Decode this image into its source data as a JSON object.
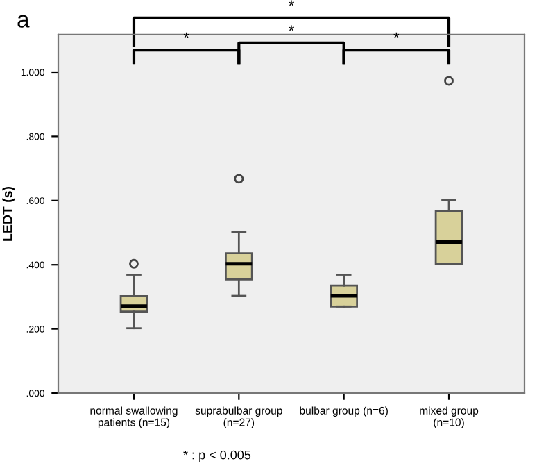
{
  "chart_data": {
    "type": "box",
    "title": "a",
    "ylabel": "LEDT (s)",
    "categories": [
      "normal swallowing\npatients (n=15)",
      "suprabulbar group\n(n=27)",
      "bulbar group (n=6)",
      "mixed group\n(n=10)"
    ],
    "boxes": [
      {
        "low": 0.202,
        "q1": 0.254,
        "median": 0.271,
        "q3": 0.302,
        "high": 0.369,
        "outliers": [
          0.403
        ]
      },
      {
        "low": 0.303,
        "q1": 0.354,
        "median": 0.403,
        "q3": 0.436,
        "high": 0.502,
        "outliers": [
          0.668
        ]
      },
      {
        "low": 0.27,
        "q1": 0.27,
        "median": 0.303,
        "q3": 0.335,
        "high": 0.369
      },
      {
        "low": 0.403,
        "q1": 0.403,
        "median": 0.471,
        "q3": 0.568,
        "high": 0.602,
        "outliers": [
          0.973
        ]
      }
    ],
    "color": "#d8d19a",
    "ylim": [
      0,
      1.117
    ],
    "yticks": [
      {
        "value": 0,
        "label": ".000"
      },
      {
        "value": 0.2,
        "label": ".200"
      },
      {
        "value": 0.4,
        "label": ".400"
      },
      {
        "value": 0.6,
        "label": ".600"
      },
      {
        "value": 0.8,
        "label": ".800"
      },
      {
        "value": 1.0,
        "label": "1.000"
      }
    ],
    "grid": false,
    "annotations": [
      "*",
      "*",
      "*",
      "*",
      "* : p < 0.005"
    ]
  }
}
